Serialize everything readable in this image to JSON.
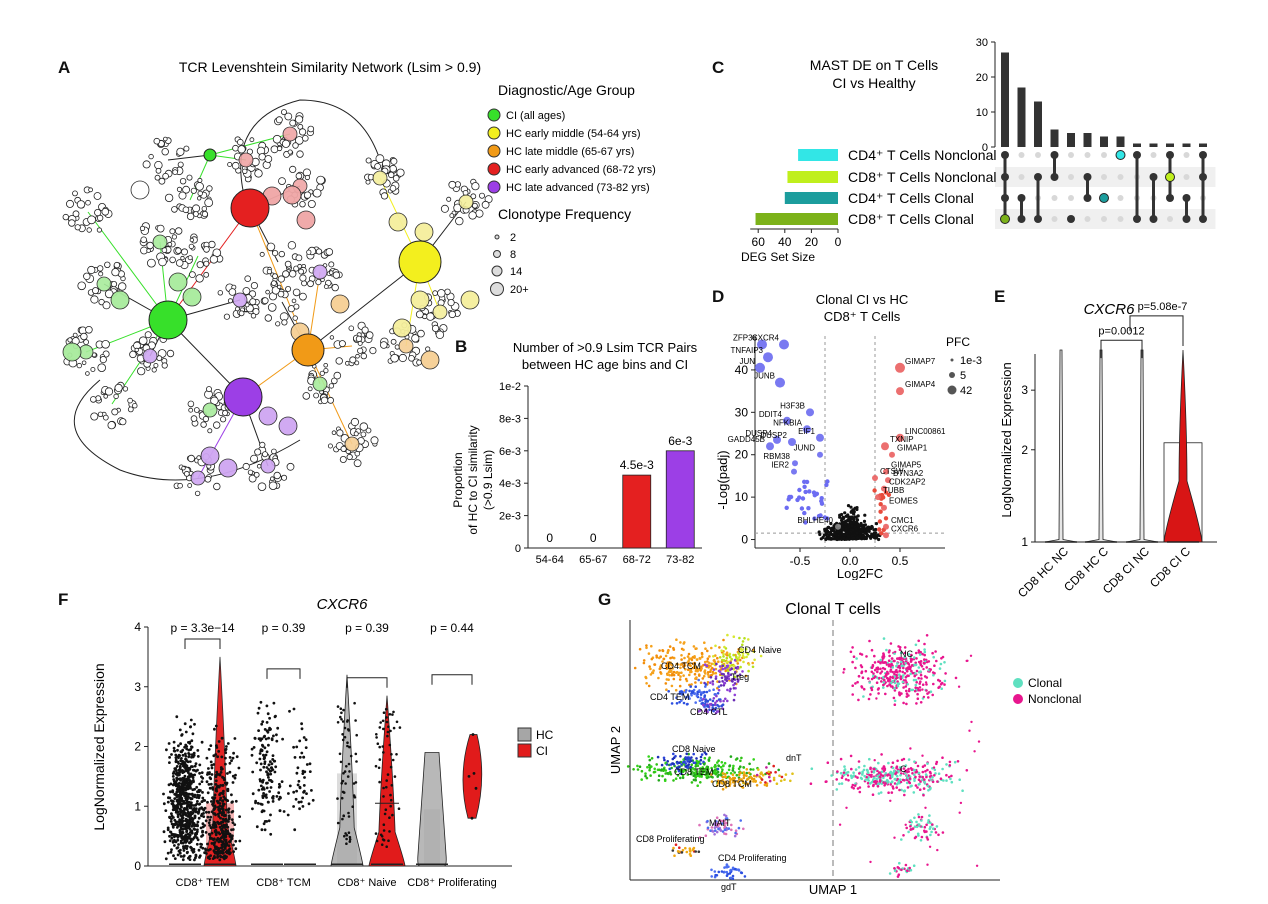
{
  "panel_labels": [
    "A",
    "B",
    "C",
    "D",
    "E",
    "F",
    "G"
  ],
  "panelA": {
    "title": "TCR Levenshtein Similarity Network (Lsim > 0.9)",
    "legend_title": "Diagnostic/Age Group",
    "groups": [
      {
        "label": "CI (all ages)",
        "color": "#37e02a"
      },
      {
        "label": "HC early middle (54-64 yrs)",
        "color": "#f3ef1e"
      },
      {
        "label": "HC late middle (65-67 yrs)",
        "color": "#f19a17"
      },
      {
        "label": "HC early advanced (68-72 yrs)",
        "color": "#e42020"
      },
      {
        "label": "HC late advanced (73-82 yrs)",
        "color": "#9c3fe6"
      }
    ],
    "size_title": "Clonotype Frequency",
    "sizes": [
      "2",
      "8",
      "14",
      "20+"
    ]
  },
  "chart_data": [
    {
      "panel": "B",
      "type": "bar",
      "title": "Number of >0.9 Lsim TCR Pairs between HC age bins and CI",
      "title_lines": [
        "Number of >0.9 Lsim TCR Pairs",
        "between HC age bins and CI"
      ],
      "ylabel_lines": [
        "Proportion",
        "of HC to CI similarity",
        "(>0.9 Lsim)"
      ],
      "categories": [
        "54-64",
        "65-67",
        "68-72",
        "73-82"
      ],
      "values": [
        0,
        0,
        0.0045,
        0.006
      ],
      "value_labels": [
        "0",
        "0",
        "4.5e-3",
        "6e-3"
      ],
      "colors": [
        "#e42020",
        "#9c3fe6"
      ],
      "ylim": [
        0,
        0.01
      ],
      "yticks": [
        0,
        0.002,
        0.004,
        0.006,
        0.008,
        0.01
      ],
      "ytick_labels": [
        "0",
        "2e-3",
        "4e-3",
        "6e-3",
        "8e-3",
        "1e-2"
      ]
    },
    {
      "panel": "C",
      "type": "bar",
      "title_lines": [
        "MAST DE on T Cells",
        "CI vs Healthy"
      ],
      "sets": [
        {
          "label": "CD4⁺ T Cells Nonclonal",
          "size": 30,
          "color": "#32e6e6"
        },
        {
          "label": "CD8⁺ T Cells Nonclonal",
          "size": 38,
          "color": "#c0ef1c"
        },
        {
          "label": "CD4⁺ T Cells Clonal",
          "size": 40,
          "color": "#1c9d9d"
        },
        {
          "label": "CD8⁺ T Cells Clonal",
          "size": 62,
          "color": "#7cb21a"
        }
      ],
      "set_axis_label": "DEG Set Size",
      "set_axis_ticks": [
        60,
        40,
        20,
        0
      ],
      "intersection_values": [
        27,
        17,
        13,
        5,
        4,
        4,
        3,
        3,
        1,
        1,
        1,
        1,
        1
      ],
      "intersection_axis_ticks": [
        0,
        10,
        20,
        30
      ]
    },
    {
      "panel": "D",
      "type": "scatter",
      "title_lines": [
        "Clonal CI vs HC",
        "CD8⁺ T Cells"
      ],
      "xlabel": "Log2FC",
      "ylabel": "-Log(padj)",
      "xlim": [
        -0.95,
        0.95
      ],
      "ylim": [
        -2,
        48
      ],
      "xticks": [
        -0.5,
        0.0,
        0.5
      ],
      "xtick_labels": [
        "-0.5",
        "0.0",
        "0.5"
      ],
      "yticks": [
        0,
        10,
        20,
        30,
        40
      ],
      "size_legend_title": "PFC",
      "size_legend": [
        "1e-3",
        "5",
        "42"
      ],
      "points": [
        {
          "g": "ZFP36",
          "x": -0.88,
          "y": 46,
          "c": "down"
        },
        {
          "g": "CXCR4",
          "x": -0.66,
          "y": 46,
          "c": "down"
        },
        {
          "g": "TNFAIP3",
          "x": -0.82,
          "y": 43,
          "c": "down"
        },
        {
          "g": "JUN",
          "x": -0.9,
          "y": 40.5,
          "c": "down"
        },
        {
          "g": "JUNB",
          "x": -0.7,
          "y": 37,
          "c": "down"
        },
        {
          "g": "H3F3B",
          "x": -0.4,
          "y": 30,
          "c": "down"
        },
        {
          "g": "DDIT4",
          "x": -0.63,
          "y": 28,
          "c": "down"
        },
        {
          "g": "NFKBIA",
          "x": -0.43,
          "y": 26,
          "c": "down"
        },
        {
          "g": "EIF1",
          "x": -0.3,
          "y": 24,
          "c": "down"
        },
        {
          "g": "DUSP4",
          "x": -0.73,
          "y": 23.5,
          "c": "down"
        },
        {
          "g": "DUSP2",
          "x": -0.58,
          "y": 23,
          "c": "down"
        },
        {
          "g": "GADD45B",
          "x": -0.8,
          "y": 22,
          "c": "down"
        },
        {
          "g": "JUND",
          "x": -0.3,
          "y": 20,
          "c": "down"
        },
        {
          "g": "RBM38",
          "x": -0.55,
          "y": 18,
          "c": "down"
        },
        {
          "g": "IER2",
          "x": -0.56,
          "y": 16,
          "c": "down"
        },
        {
          "g": "BHLHE40",
          "x": -0.12,
          "y": 3,
          "c": "ns"
        },
        {
          "g": "GIMAP7",
          "x": 0.5,
          "y": 40.5,
          "c": "up"
        },
        {
          "g": "GIMAP4",
          "x": 0.5,
          "y": 35,
          "c": "up"
        },
        {
          "g": "LINC00861",
          "x": 0.5,
          "y": 24,
          "c": "up"
        },
        {
          "g": "TXNIP",
          "x": 0.35,
          "y": 22,
          "c": "up"
        },
        {
          "g": "GIMAP1",
          "x": 0.42,
          "y": 20,
          "c": "up"
        },
        {
          "g": "GIMAP5",
          "x": 0.36,
          "y": 16,
          "c": "up"
        },
        {
          "g": "CTSW",
          "x": 0.25,
          "y": 14.5,
          "c": "up"
        },
        {
          "g": "BTN3A2",
          "x": 0.38,
          "y": 14,
          "c": "up"
        },
        {
          "g": "CDK2AP2",
          "x": 0.34,
          "y": 12,
          "c": "up"
        },
        {
          "g": "TUBB",
          "x": 0.28,
          "y": 10,
          "c": "up"
        },
        {
          "g": "EOMES",
          "x": 0.34,
          "y": 7.5,
          "c": "up"
        },
        {
          "g": "CMC1",
          "x": 0.36,
          "y": 3,
          "c": "up"
        },
        {
          "g": "CXCR6",
          "x": 0.36,
          "y": 1,
          "c": "up"
        }
      ]
    },
    {
      "panel": "E",
      "type": "violin",
      "title": "CXCR6",
      "ylabel": "LogNormalized Expression",
      "categories": [
        "CD8 HC NC",
        "CD8 HC C",
        "CD8 CI NC",
        "CD8 CI C"
      ],
      "yticks": [
        1,
        2,
        3
      ],
      "pvalues": [
        "p=0.0012",
        "p=5.08e-7"
      ]
    },
    {
      "panel": "F",
      "type": "violin",
      "title": "CXCR6",
      "ylabel": "LogNormalized Expression",
      "ylim": [
        0,
        4
      ],
      "yticks": [
        0,
        1,
        2,
        3,
        4
      ],
      "categories": [
        "CD8⁺ TEM",
        "CD8⁺ TCM",
        "CD8⁺ Naive",
        "CD8⁺ Proliferating"
      ],
      "pvalues": [
        "p = 3.3e−14",
        "p = 0.39",
        "p = 0.39",
        "p = 0.44"
      ],
      "legend": [
        {
          "label": "HC",
          "color": "#a6a6a6"
        },
        {
          "label": "CI",
          "color": "#e11b1b"
        }
      ]
    },
    {
      "panel": "G",
      "type": "scatter",
      "title": "Clonal T cells",
      "xlabel": "UMAP 1",
      "ylabel": "UMAP 2",
      "cluster_labels": [
        "CD4 Naive",
        "CD4 TCM",
        "Treg",
        "CD4 TEM",
        "CD4 CTL",
        "dnT",
        "CD8 Naive",
        "CD8 TEM",
        "CD8 TCM",
        "MAIT",
        "CD8 Proliferating",
        "CD4 Proliferating",
        "gdT"
      ],
      "right_labels": [
        "NC",
        "C"
      ],
      "legend": [
        {
          "label": "Clonal",
          "color": "#5fe0c0"
        },
        {
          "label": "Nonclonal",
          "color": "#e8168e"
        }
      ]
    }
  ]
}
